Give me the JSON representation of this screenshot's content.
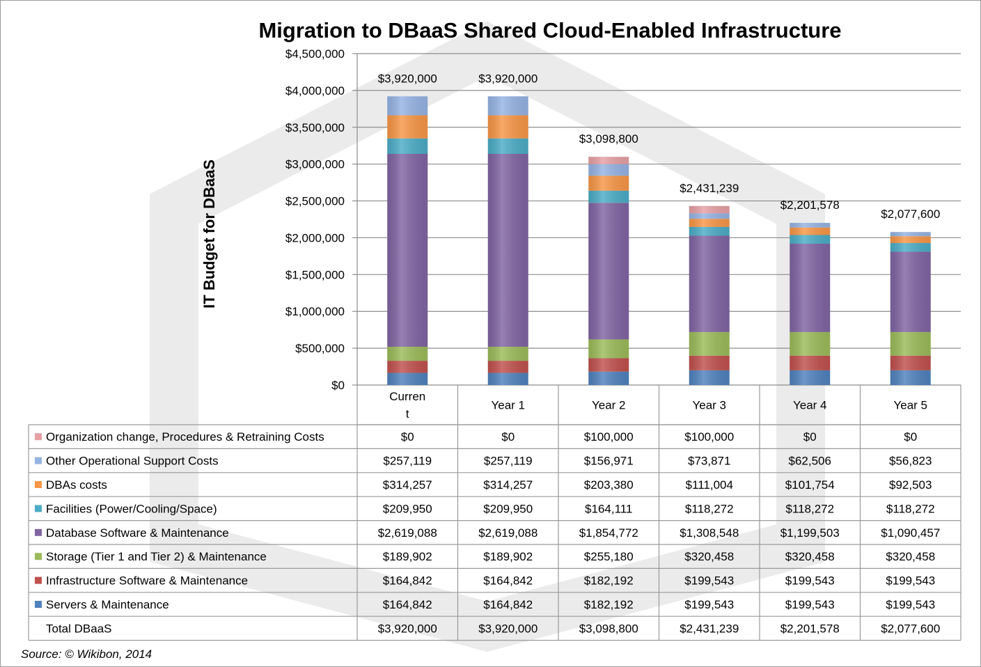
{
  "chart_data": {
    "type": "bar",
    "stacked": true,
    "title": "Migration to DBaaS Shared Cloud-Enabled Infrastructure",
    "ylabel": "IT Budget for DBaaS",
    "ylim": [
      0,
      4500000
    ],
    "yticks": [
      "$0",
      "$500,000",
      "$1,000,000",
      "$1,500,000",
      "$2,000,000",
      "$2,500,000",
      "$3,000,000",
      "$3,500,000",
      "$4,000,000",
      "$4,500,000"
    ],
    "grid": true,
    "categories": [
      "Curren\nt",
      "Year 1",
      "Year 2",
      "Year 3",
      "Year 4",
      "Year 5"
    ],
    "category_lines": [
      [
        "Curren",
        "t"
      ],
      [
        "Year 1"
      ],
      [
        "Year 2"
      ],
      [
        "Year 3"
      ],
      [
        "Year 4"
      ],
      [
        "Year 5"
      ]
    ],
    "series": [
      {
        "name": "Servers & Maintenance",
        "color": "#4f81bd",
        "values": [
          164842,
          164842,
          182192,
          199543,
          199543,
          199543
        ],
        "labels": [
          "$164,842",
          "$164,842",
          "$182,192",
          "$199,543",
          "$199,543",
          "$199,543"
        ]
      },
      {
        "name": "Infrastructure Software & Maintenance",
        "color": "#c0504d",
        "values": [
          164842,
          164842,
          182192,
          199543,
          199543,
          199543
        ],
        "labels": [
          "$164,842",
          "$164,842",
          "$182,192",
          "$199,543",
          "$199,543",
          "$199,543"
        ]
      },
      {
        "name": "Storage (Tier 1 and Tier 2) & Maintenance",
        "color": "#9bbb59",
        "values": [
          189902,
          189902,
          255180,
          320458,
          320458,
          320458
        ],
        "labels": [
          "$189,902",
          "$189,902",
          "$255,180",
          "$320,458",
          "$320,458",
          "$320,458"
        ]
      },
      {
        "name": "Database Software & Maintenance",
        "color": "#8064a2",
        "values": [
          2619088,
          2619088,
          1854772,
          1308548,
          1199503,
          1090457
        ],
        "labels": [
          "$2,619,088",
          "$2,619,088",
          "$1,854,772",
          "$1,308,548",
          "$1,199,503",
          "$1,090,457"
        ]
      },
      {
        "name": "Facilities (Power/Cooling/Space)",
        "color": "#4bacc6",
        "values": [
          209950,
          209950,
          164111,
          118272,
          118272,
          118272
        ],
        "labels": [
          "$209,950",
          "$209,950",
          "$164,111",
          "$118,272",
          "$118,272",
          "$118,272"
        ]
      },
      {
        "name": "DBAs costs",
        "color": "#f79646",
        "values": [
          314257,
          314257,
          203380,
          111004,
          101754,
          92503
        ],
        "labels": [
          "$314,257",
          "$314,257",
          "$203,380",
          "$111,004",
          "$101,754",
          "$92,503"
        ]
      },
      {
        "name": "Other Operational Support Costs",
        "color": "#95b3e3",
        "values": [
          257119,
          257119,
          156971,
          73871,
          62506,
          56823
        ],
        "labels": [
          "$257,119",
          "$257,119",
          "$156,971",
          "$73,871",
          "$62,506",
          "$56,823"
        ]
      },
      {
        "name": "Organization change, Procedures & Retraining Costs",
        "color": "#e6a0a4",
        "values": [
          0,
          0,
          100000,
          100000,
          0,
          0
        ],
        "labels": [
          "$0",
          "$0",
          "$100,000",
          "$100,000",
          "$0",
          "$0"
        ]
      }
    ],
    "totals": [
      3920000,
      3920000,
      3098800,
      2431239,
      2201578,
      2077600
    ],
    "total_labels": [
      "$3,920,000",
      "$3,920,000",
      "$3,098,800",
      "$2,431,239",
      "$2,201,578",
      "$2,077,600"
    ],
    "total_row_label": "Total DBaaS",
    "legend": "data-table"
  },
  "source": "Source: © Wikibon, 2014",
  "watermark": "Wikibon"
}
